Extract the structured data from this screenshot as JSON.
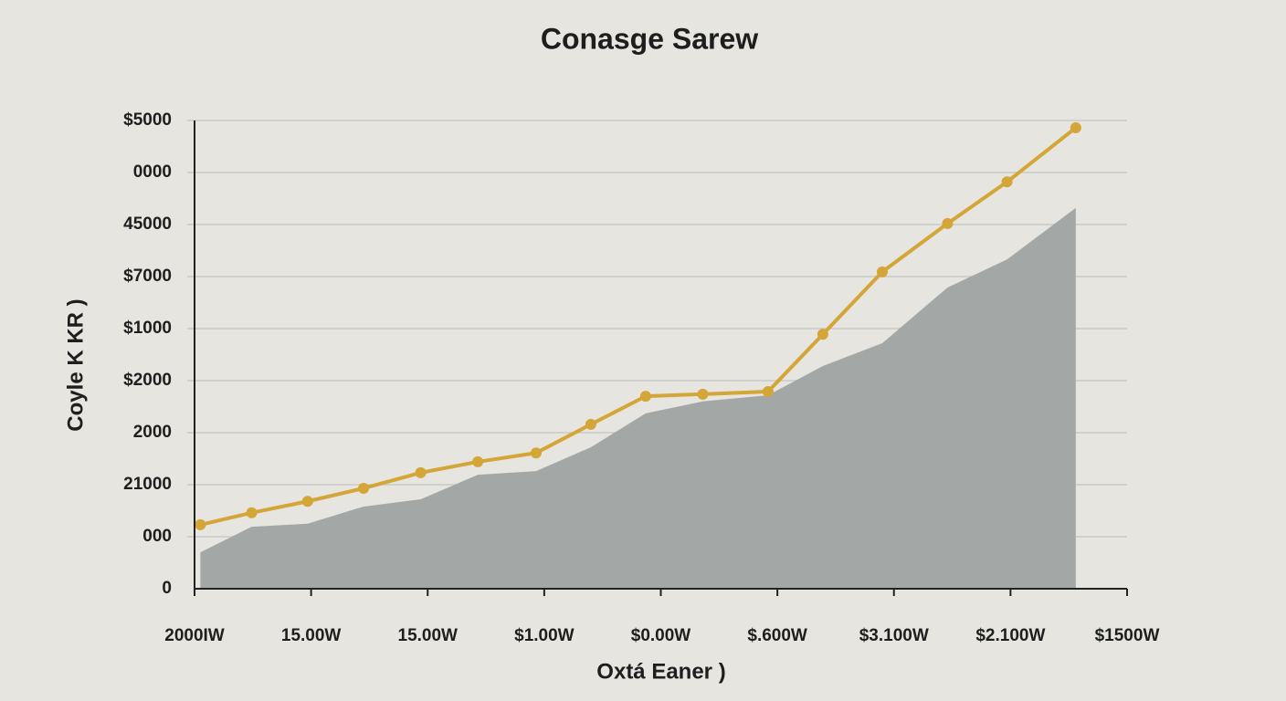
{
  "chart_data": {
    "type": "line",
    "title": "Conasge Sarew",
    "x_label": "Oxtá Eaner )",
    "y_label": "Coyle K KR )",
    "x": [
      0.05,
      0.49,
      0.97,
      1.45,
      1.94,
      2.43,
      2.93,
      3.4,
      3.87,
      4.36,
      4.92,
      5.39,
      5.9,
      6.46,
      6.97,
      7.56
    ],
    "series": [
      {
        "kind": "area",
        "color": "#a3a8a7",
        "values": [
          0.7,
          1.19,
          1.25,
          1.58,
          1.72,
          2.19,
          2.26,
          2.72,
          3.37,
          3.6,
          3.72,
          4.28,
          4.72,
          5.79,
          6.33,
          7.32
        ]
      },
      {
        "kind": "line",
        "color": "#d4a537",
        "values": [
          1.23,
          1.46,
          1.68,
          1.93,
          2.23,
          2.44,
          2.61,
          3.16,
          3.7,
          3.74,
          3.79,
          4.89,
          6.09,
          7.02,
          7.82,
          8.86
        ]
      }
    ],
    "xlim": [
      0,
      8
    ],
    "xticks": [
      {
        "value": 0,
        "label": "2000IW"
      },
      {
        "value": 1,
        "label": "15.00W"
      },
      {
        "value": 2,
        "label": "15.00W"
      },
      {
        "value": 3,
        "label": "$1.00W"
      },
      {
        "value": 4,
        "label": "$0.00W"
      },
      {
        "value": 5,
        "label": "$.600W"
      },
      {
        "value": 6,
        "label": "$3.100W"
      },
      {
        "value": 7,
        "label": "$2.100W"
      },
      {
        "value": 8,
        "label": "$1500W"
      }
    ],
    "ylim": [
      0,
      9
    ],
    "yticks": [
      0,
      {
        "value": 1,
        "label": "000"
      },
      {
        "value": 2,
        "label": "21000"
      },
      {
        "value": 3,
        "label": "2000"
      },
      {
        "value": 4,
        "label": "$2000"
      },
      {
        "value": 5,
        "label": "$1000"
      },
      {
        "value": 6,
        "label": "$7000"
      },
      {
        "value": 7,
        "label": "45000"
      },
      {
        "value": 8,
        "label": "0000"
      },
      {
        "value": 9,
        "label": "$5000"
      }
    ],
    "grid": true
  }
}
